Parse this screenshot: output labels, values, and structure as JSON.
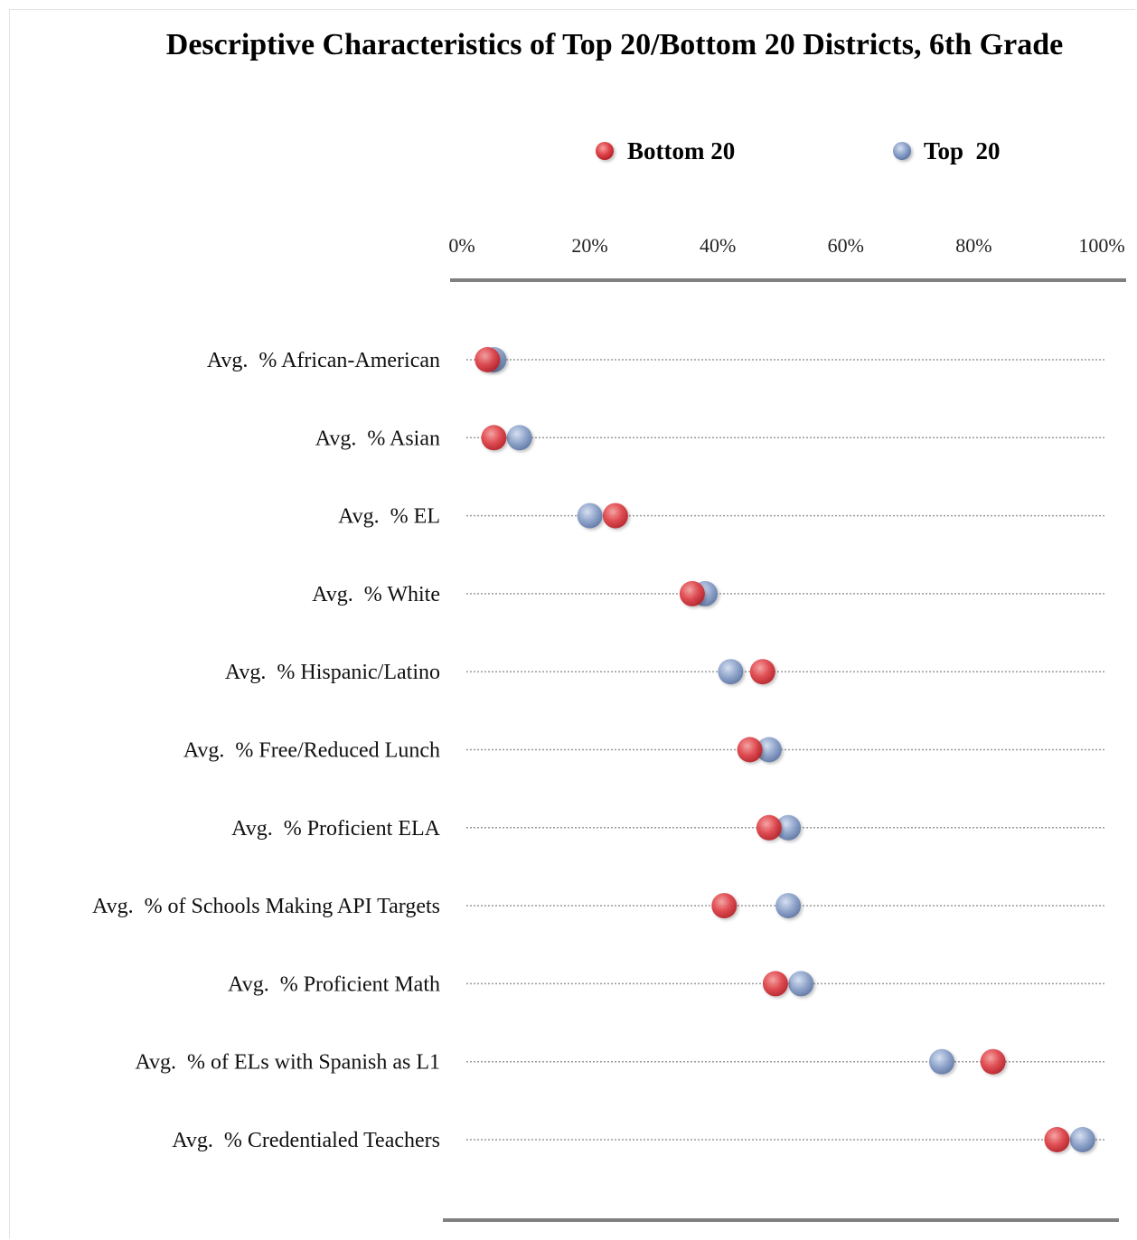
{
  "chart_data": {
    "type": "scatter",
    "title": "Descriptive Characteristics of Top 20/Bottom 20 Districts, 6th Grade",
    "xlim": [
      0,
      100
    ],
    "x_ticks": [
      "0%",
      "20%",
      "40%",
      "60%",
      "80%",
      "100%"
    ],
    "legend_position": "top",
    "categories": [
      "Avg.  % African-American",
      "Avg.  % Asian",
      "Avg.  % EL",
      "Avg.  % White",
      "Avg.  % Hispanic/Latino",
      "Avg.  % Free/Reduced Lunch",
      "Avg.  % Proficient ELA",
      "Avg.  % of Schools Making API Targets",
      "Avg.  % Proficient Math",
      "Avg.  % of ELs with Spanish as L1",
      "Avg.  % Credentialed Teachers"
    ],
    "series": [
      {
        "name": "Top  20",
        "color": "#7f97c4",
        "values": [
          5,
          9,
          20,
          38,
          42,
          48,
          51,
          51,
          53,
          75,
          97
        ]
      },
      {
        "name": "Bottom 20",
        "color": "#d9363a",
        "values": [
          4,
          5,
          24,
          36,
          47,
          45,
          48,
          41,
          49,
          83,
          93
        ]
      }
    ]
  }
}
